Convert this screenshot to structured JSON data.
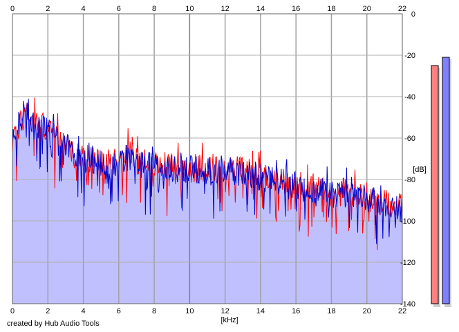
{
  "chart_data": {
    "type": "line",
    "xlabel": "[kHz]",
    "ylabel": "[dB]",
    "xlim": [
      0,
      22
    ],
    "ylim": [
      -140,
      0
    ],
    "x_ticks": [
      0,
      2,
      4,
      6,
      8,
      10,
      12,
      14,
      16,
      18,
      20,
      22
    ],
    "y_ticks": [
      0,
      -20,
      -40,
      -60,
      -80,
      -100,
      -120,
      -140
    ],
    "grid": true,
    "fill_color": "#c0c0ff",
    "series": [
      {
        "color": "#ff0000",
        "x": [
          0,
          0.5,
          0.8,
          1.2,
          1.8,
          2.5,
          3.0,
          3.5,
          4.0,
          4.5,
          5.0,
          5.5,
          6.0,
          6.5,
          7.0,
          7.5,
          8.0,
          9.0,
          10.0,
          11.0,
          12.0,
          13.0,
          14.0,
          15.0,
          16.0,
          17.0,
          18.0,
          19.0,
          20.0,
          21.0,
          22.0
        ],
        "y": [
          -62,
          -52,
          -46,
          -52,
          -54,
          -60,
          -62,
          -66,
          -70,
          -70,
          -72,
          -72,
          -70,
          -68,
          -70,
          -72,
          -73,
          -74,
          -75,
          -74,
          -74,
          -76,
          -78,
          -80,
          -84,
          -84,
          -86,
          -86,
          -90,
          -92,
          -94
        ]
      },
      {
        "color": "#0000cc",
        "x": [
          0,
          0.5,
          0.8,
          1.2,
          1.8,
          2.5,
          3.0,
          3.5,
          4.0,
          4.5,
          5.0,
          5.5,
          6.0,
          6.5,
          7.0,
          7.5,
          8.0,
          9.0,
          10.0,
          11.0,
          12.0,
          13.0,
          14.0,
          15.0,
          16.0,
          17.0,
          18.0,
          19.0,
          20.0,
          21.0,
          22.0
        ],
        "y": [
          -63,
          -50,
          -45,
          -54,
          -55,
          -61,
          -63,
          -67,
          -71,
          -70,
          -73,
          -73,
          -72,
          -70,
          -72,
          -73,
          -74,
          -75,
          -75,
          -76,
          -75,
          -77,
          -79,
          -81,
          -84,
          -85,
          -87,
          -87,
          -90,
          -92,
          -95
        ]
      }
    ]
  },
  "level_meters": [
    {
      "color": "#ff8080",
      "level_db": -25
    },
    {
      "color": "#8080ff",
      "level_db": -21
    }
  ],
  "footer": "created by Hub Audio Tools"
}
